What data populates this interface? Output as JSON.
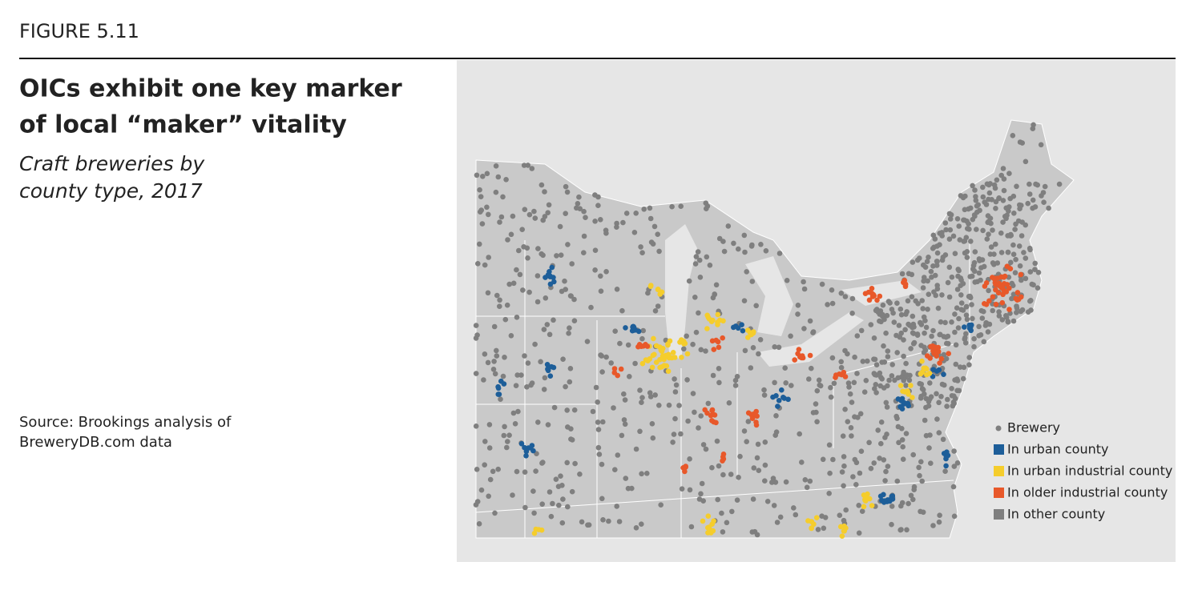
{
  "figure_label": "FIGURE 5.11",
  "title": [
    "OICs exhibit one key marker",
    "of local “maker” vitality"
  ],
  "subtitle": [
    "Craft breweries by",
    "county type, 2017"
  ],
  "source": [
    "Source: Brookings analysis of",
    "BreweryDB.com data"
  ],
  "legend": {
    "items": [
      {
        "label": "Brewery",
        "marker": "dot",
        "color": "#7f7f7f"
      },
      {
        "label": "In urban county",
        "marker": "square",
        "color": "#1d5e99"
      },
      {
        "label": "In urban industrial county",
        "marker": "square",
        "color": "#f5cd2c"
      },
      {
        "label": "In older industrial county",
        "marker": "square",
        "color": "#e8582a"
      },
      {
        "label": "In other county",
        "marker": "square",
        "color": "#7f7f7f"
      }
    ]
  }
}
